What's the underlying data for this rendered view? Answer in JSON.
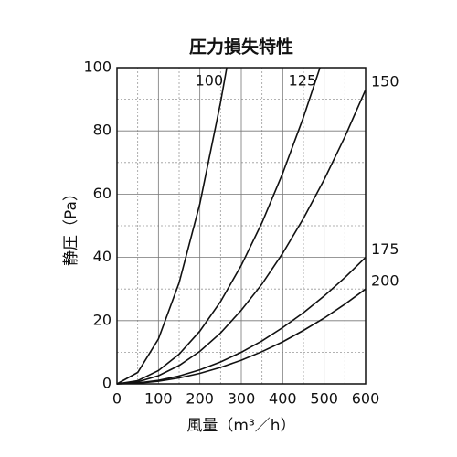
{
  "chart_data": {
    "type": "line",
    "title": "圧力損失特性",
    "x_label": "風量（m³／h）",
    "y_label": "静圧（Pa）",
    "xlim": [
      0,
      600
    ],
    "ylim": [
      0,
      100
    ],
    "xticks": [
      0,
      100,
      200,
      300,
      400,
      500,
      600
    ],
    "yticks": [
      0,
      20,
      40,
      60,
      80,
      100
    ],
    "xminor_ticks": [
      50,
      150,
      250,
      350,
      450,
      550
    ],
    "yminor_ticks": [
      10,
      30,
      50,
      70,
      90
    ],
    "grid": true,
    "color": "#111111",
    "series": [
      {
        "name": "100",
        "x": [
          0,
          50,
          100,
          150,
          200,
          250,
          265
        ],
        "values": [
          0,
          3.6,
          14.2,
          32,
          57,
          89,
          100
        ]
      },
      {
        "name": "125",
        "x": [
          0,
          50,
          100,
          150,
          200,
          250,
          300,
          350,
          400,
          450,
          490
        ],
        "values": [
          0,
          1,
          4.2,
          9.4,
          16.7,
          26,
          37.5,
          51,
          66.6,
          84.3,
          100
        ]
      },
      {
        "name": "150",
        "x": [
          0,
          50,
          100,
          150,
          200,
          250,
          300,
          350,
          400,
          450,
          500,
          550,
          600
        ],
        "values": [
          0,
          0.65,
          2.58,
          5.81,
          10.3,
          16.1,
          23.3,
          31.6,
          41.3,
          52.3,
          64.6,
          78.1,
          93
        ]
      },
      {
        "name": "175",
        "x": [
          0,
          50,
          100,
          150,
          200,
          250,
          300,
          350,
          400,
          450,
          500,
          550,
          600
        ],
        "values": [
          0,
          0.28,
          1.11,
          2.5,
          4.44,
          6.94,
          10,
          13.6,
          17.8,
          22.5,
          27.8,
          33.6,
          40
        ]
      },
      {
        "name": "200",
        "x": [
          0,
          50,
          100,
          150,
          200,
          250,
          300,
          350,
          400,
          450,
          500,
          550,
          600
        ],
        "values": [
          0,
          0.21,
          0.83,
          1.88,
          3.33,
          5.21,
          7.5,
          10.2,
          13.3,
          16.9,
          20.8,
          25.2,
          30
        ]
      }
    ]
  }
}
